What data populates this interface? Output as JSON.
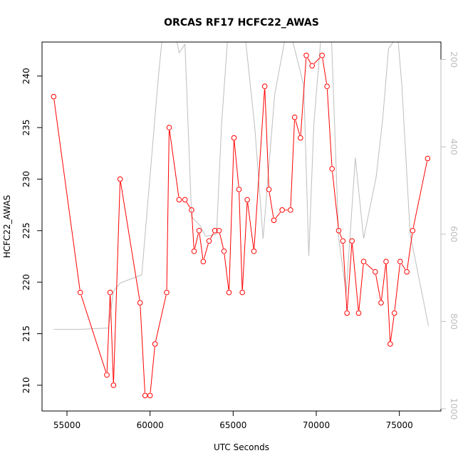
{
  "chart_data": {
    "type": "line",
    "title": "ORCAS RF17 HCFC22_AWAS",
    "xlabel": "UTC Seconds",
    "ylabel": "HCFC22_AWAS",
    "xlim": [
      53500,
      77500
    ],
    "ylim": [
      207.5,
      243.3
    ],
    "x_ticks": [
      55000,
      60000,
      65000,
      70000,
      75000
    ],
    "y_ticks": [
      210,
      215,
      220,
      225,
      230,
      235,
      240
    ],
    "grid": false,
    "legend": "none",
    "series": [
      {
        "color": "#ff0000",
        "marker": "circle",
        "points": [
          [
            54200,
            238
          ],
          [
            55800,
            219
          ],
          [
            57400,
            211
          ],
          [
            57600,
            219
          ],
          [
            57800,
            210
          ],
          [
            58200,
            230
          ],
          [
            59400,
            218
          ],
          [
            59700,
            209
          ],
          [
            60000,
            209
          ],
          [
            60300,
            214
          ],
          [
            61000,
            219
          ],
          [
            61150,
            235
          ],
          [
            61750,
            228
          ],
          [
            62100,
            228
          ],
          [
            62500,
            227
          ],
          [
            62650,
            223
          ],
          [
            62950,
            225
          ],
          [
            63200,
            222
          ],
          [
            63550,
            224
          ],
          [
            63900,
            225
          ],
          [
            64150,
            225
          ],
          [
            64450,
            223
          ],
          [
            64750,
            219
          ],
          [
            65050,
            234
          ],
          [
            65350,
            229
          ],
          [
            65550,
            219
          ],
          [
            65850,
            228
          ],
          [
            66250,
            223
          ],
          [
            66900,
            239
          ],
          [
            67150,
            229
          ],
          [
            67450,
            226
          ],
          [
            67950,
            227
          ],
          [
            68450,
            227
          ],
          [
            68700,
            236
          ],
          [
            69050,
            234
          ],
          [
            69400,
            242
          ],
          [
            69750,
            241
          ],
          [
            70350,
            242
          ],
          [
            70650,
            239
          ],
          [
            70950,
            231
          ],
          [
            71350,
            225
          ],
          [
            71600,
            224
          ],
          [
            71850,
            217
          ],
          [
            72150,
            224
          ],
          [
            72550,
            217
          ],
          [
            72850,
            222
          ],
          [
            73550,
            221
          ],
          [
            73900,
            218
          ],
          [
            74200,
            222
          ],
          [
            74450,
            214
          ],
          [
            74700,
            217
          ],
          [
            75050,
            222
          ],
          [
            75450,
            221
          ],
          [
            75800,
            225
          ],
          [
            76700,
            232
          ]
        ]
      },
      {
        "color": "#bebebe",
        "axis": "right",
        "points": [
          [
            54200,
            818
          ],
          [
            55800,
            818
          ],
          [
            57500,
            815
          ],
          [
            57800,
            730
          ],
          [
            58200,
            712
          ],
          [
            59500,
            693
          ],
          [
            60500,
            240
          ],
          [
            61000,
            45
          ],
          [
            61750,
            185
          ],
          [
            62100,
            165
          ],
          [
            62500,
            560
          ],
          [
            63000,
            580
          ],
          [
            63350,
            605
          ],
          [
            64000,
            600
          ],
          [
            64300,
            350
          ],
          [
            64800,
            80
          ],
          [
            65100,
            50
          ],
          [
            65400,
            30
          ],
          [
            66300,
            355
          ],
          [
            66800,
            610
          ],
          [
            67500,
            280
          ],
          [
            68300,
            115
          ],
          [
            69250,
            260
          ],
          [
            69550,
            650
          ],
          [
            69850,
            350
          ],
          [
            70300,
            140
          ],
          [
            70800,
            30
          ],
          [
            71350,
            610
          ],
          [
            71800,
            735
          ],
          [
            72350,
            425
          ],
          [
            72850,
            610
          ],
          [
            73600,
            470
          ],
          [
            74000,
            335
          ],
          [
            74350,
            175
          ],
          [
            74900,
            145
          ],
          [
            75150,
            260
          ],
          [
            75650,
            600
          ],
          [
            76750,
            810
          ]
        ]
      }
    ],
    "right_axis": {
      "lim": [
        1005,
        160
      ],
      "ticks": [
        200,
        400,
        600,
        800,
        1000
      ]
    }
  }
}
